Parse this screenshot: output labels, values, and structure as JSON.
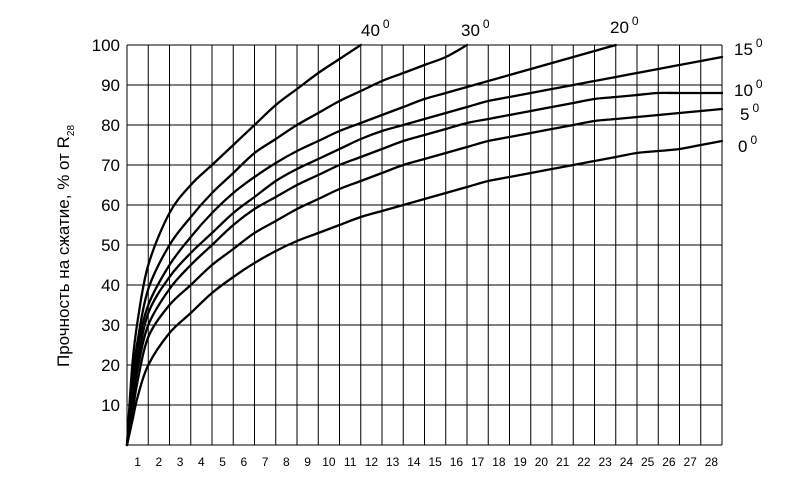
{
  "chart_data": {
    "type": "line",
    "title": "",
    "xlabel": "",
    "ylabel": "Прочность на сжатие, % от R",
    "ylabel_subscript": "28",
    "xlim": [
      0,
      28
    ],
    "ylim": [
      0,
      100
    ],
    "x_ticks": [
      1,
      2,
      3,
      4,
      5,
      6,
      7,
      8,
      9,
      10,
      11,
      12,
      13,
      14,
      15,
      16,
      17,
      18,
      19,
      20,
      21,
      22,
      23,
      24,
      25,
      26,
      27,
      28
    ],
    "y_ticks": [
      10,
      20,
      30,
      40,
      50,
      60,
      70,
      80,
      90,
      100
    ],
    "grid": true,
    "degree_mark": "0",
    "series": [
      {
        "name": "40",
        "x": [
          0,
          0.25,
          0.5,
          1,
          2,
          3,
          4,
          5,
          6,
          7,
          8,
          9,
          10,
          11
        ],
        "y": [
          0,
          20,
          31,
          45,
          58,
          65,
          70,
          75,
          80,
          85,
          89,
          93,
          96.5,
          100
        ]
      },
      {
        "name": "30",
        "x": [
          0,
          0.25,
          0.5,
          1,
          2,
          3,
          4,
          5,
          6,
          7,
          8,
          9,
          10,
          11,
          12,
          13,
          14,
          15,
          16
        ],
        "y": [
          0,
          16,
          26,
          39,
          50,
          57,
          63,
          68,
          73,
          76.5,
          80,
          83,
          86,
          88.5,
          91,
          93,
          95,
          97,
          100
        ]
      },
      {
        "name": "20",
        "x": [
          0,
          0.25,
          0.5,
          1,
          2,
          3,
          4,
          5,
          6,
          7,
          8,
          9,
          10,
          11,
          12,
          13,
          14,
          15,
          16,
          17,
          18,
          19,
          20,
          21,
          22,
          23
        ],
        "y": [
          0,
          14,
          24,
          35,
          45,
          52,
          58,
          63,
          67,
          70.5,
          73.5,
          76,
          78.5,
          80.5,
          82.5,
          84.5,
          86.5,
          88,
          89.5,
          91,
          92.5,
          94,
          95.5,
          97,
          98.5,
          100
        ]
      },
      {
        "name": "15",
        "x": [
          0,
          0.25,
          0.5,
          1,
          2,
          3,
          4,
          5,
          6,
          7,
          8,
          9,
          10,
          11,
          12,
          13,
          14,
          15,
          16,
          17,
          18,
          19,
          20,
          21,
          22,
          23,
          24,
          25,
          26,
          27,
          28
        ],
        "y": [
          0,
          12,
          21,
          33,
          42,
          48,
          53,
          58,
          62,
          66,
          69,
          71.5,
          74,
          76.5,
          78.5,
          80,
          81.5,
          83,
          84.5,
          86,
          87,
          88,
          89,
          90,
          91,
          92,
          93,
          94,
          95,
          96,
          97
        ]
      },
      {
        "name": "10",
        "x": [
          0,
          0.25,
          0.5,
          1,
          2,
          3,
          4,
          5,
          6,
          7,
          8,
          9,
          10,
          11,
          12,
          13,
          14,
          15,
          16,
          17,
          18,
          19,
          20,
          21,
          22,
          23,
          24,
          25,
          26,
          27,
          28
        ],
        "y": [
          0,
          10,
          19,
          30,
          39,
          45,
          50,
          55,
          59,
          62,
          65,
          67.5,
          70,
          72,
          74,
          76,
          77.5,
          79,
          80.5,
          81.5,
          82.5,
          83.5,
          84.5,
          85.5,
          86.5,
          87,
          87.5,
          88,
          88,
          88,
          88
        ]
      },
      {
        "name": "5",
        "x": [
          0,
          0.25,
          0.5,
          1,
          2,
          3,
          4,
          5,
          6,
          7,
          8,
          9,
          10,
          11,
          12,
          13,
          14,
          15,
          16,
          17,
          18,
          19,
          20,
          21,
          22,
          23,
          24,
          25,
          26,
          27,
          28
        ],
        "y": [
          0,
          8,
          16,
          27,
          35,
          40,
          45,
          49,
          53,
          56,
          59,
          61.5,
          64,
          66,
          68,
          70,
          71.5,
          73,
          74.5,
          76,
          77,
          78,
          79,
          80,
          81,
          81.5,
          82,
          82.5,
          83,
          83.5,
          84
        ]
      },
      {
        "name": "0",
        "x": [
          0,
          0.25,
          0.5,
          1,
          2,
          3,
          4,
          5,
          6,
          7,
          8,
          9,
          10,
          11,
          12,
          13,
          14,
          15,
          16,
          17,
          18,
          19,
          20,
          21,
          22,
          23,
          24,
          25,
          26,
          27,
          28
        ],
        "y": [
          0,
          6,
          12,
          20,
          28,
          33,
          38,
          42,
          45.5,
          48.5,
          51,
          53,
          55,
          57,
          58.5,
          60,
          61.5,
          63,
          64.5,
          66,
          67,
          68,
          69,
          70,
          71,
          72,
          73,
          73.5,
          74,
          75,
          76
        ]
      }
    ]
  }
}
